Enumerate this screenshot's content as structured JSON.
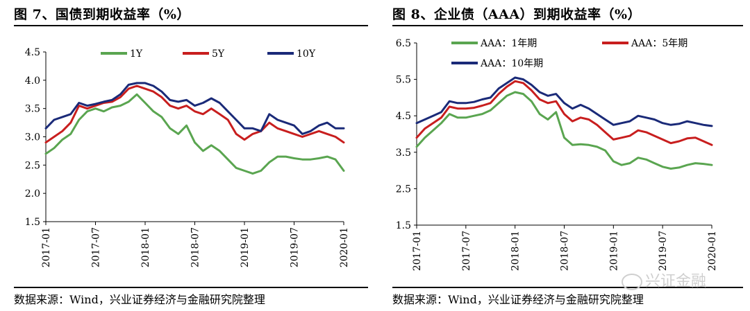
{
  "left": {
    "title": "图 7、国债到期收益率（%）",
    "source": "数据来源：Wind，兴业证券经济与金融研究院整理"
  },
  "right": {
    "title": "图 8、企业债（AAA）到期收益率（%）",
    "source": "数据来源：Wind，兴业证券经济与金融研究院整理"
  },
  "watermark": "兴证金融",
  "chart_data": [
    {
      "type": "line",
      "title": "图 7、国债到期收益率（%）",
      "x_ticks": [
        "2017-01",
        "2017-07",
        "2018-01",
        "2018-07",
        "2019-01",
        "2019-07",
        "2020-01"
      ],
      "y_ticks": [
        "1.5",
        "2.0",
        "2.5",
        "3.0",
        "3.5",
        "4.0",
        "4.5"
      ],
      "ylim": [
        1.5,
        4.5
      ],
      "xlim": [
        "2017-01",
        "2020-01"
      ],
      "legend_position": "top",
      "grid": false,
      "series": [
        {
          "name": "1Y",
          "color": "#5aa550",
          "points": [
            [
              "2017-01",
              2.7
            ],
            [
              "2017-02",
              2.8
            ],
            [
              "2017-03",
              2.95
            ],
            [
              "2017-04",
              3.05
            ],
            [
              "2017-05",
              3.3
            ],
            [
              "2017-06",
              3.45
            ],
            [
              "2017-07",
              3.5
            ],
            [
              "2017-08",
              3.45
            ],
            [
              "2017-09",
              3.52
            ],
            [
              "2017-10",
              3.55
            ],
            [
              "2017-11",
              3.62
            ],
            [
              "2017-12",
              3.75
            ],
            [
              "2018-01",
              3.6
            ],
            [
              "2018-02",
              3.45
            ],
            [
              "2018-03",
              3.35
            ],
            [
              "2018-04",
              3.15
            ],
            [
              "2018-05",
              3.05
            ],
            [
              "2018-06",
              3.2
            ],
            [
              "2018-07",
              2.9
            ],
            [
              "2018-08",
              2.75
            ],
            [
              "2018-09",
              2.85
            ],
            [
              "2018-10",
              2.75
            ],
            [
              "2018-11",
              2.6
            ],
            [
              "2018-12",
              2.45
            ],
            [
              "2019-01",
              2.4
            ],
            [
              "2019-02",
              2.35
            ],
            [
              "2019-03",
              2.4
            ],
            [
              "2019-04",
              2.55
            ],
            [
              "2019-05",
              2.65
            ],
            [
              "2019-06",
              2.65
            ],
            [
              "2019-07",
              2.62
            ],
            [
              "2019-08",
              2.6
            ],
            [
              "2019-09",
              2.6
            ],
            [
              "2019-10",
              2.62
            ],
            [
              "2019-11",
              2.65
            ],
            [
              "2019-12",
              2.6
            ],
            [
              "2020-01",
              2.4
            ]
          ]
        },
        {
          "name": "5Y",
          "color": "#c81e1e",
          "points": [
            [
              "2017-01",
              2.9
            ],
            [
              "2017-02",
              3.0
            ],
            [
              "2017-03",
              3.1
            ],
            [
              "2017-04",
              3.25
            ],
            [
              "2017-05",
              3.55
            ],
            [
              "2017-06",
              3.5
            ],
            [
              "2017-07",
              3.55
            ],
            [
              "2017-08",
              3.6
            ],
            [
              "2017-09",
              3.62
            ],
            [
              "2017-10",
              3.7
            ],
            [
              "2017-11",
              3.85
            ],
            [
              "2017-12",
              3.9
            ],
            [
              "2018-01",
              3.85
            ],
            [
              "2018-02",
              3.8
            ],
            [
              "2018-03",
              3.7
            ],
            [
              "2018-04",
              3.55
            ],
            [
              "2018-05",
              3.5
            ],
            [
              "2018-06",
              3.55
            ],
            [
              "2018-07",
              3.45
            ],
            [
              "2018-08",
              3.4
            ],
            [
              "2018-09",
              3.5
            ],
            [
              "2018-10",
              3.4
            ],
            [
              "2018-11",
              3.3
            ],
            [
              "2018-12",
              3.05
            ],
            [
              "2019-01",
              2.95
            ],
            [
              "2019-02",
              3.05
            ],
            [
              "2019-03",
              3.1
            ],
            [
              "2019-04",
              3.25
            ],
            [
              "2019-05",
              3.15
            ],
            [
              "2019-06",
              3.1
            ],
            [
              "2019-07",
              3.05
            ],
            [
              "2019-08",
              3.0
            ],
            [
              "2019-09",
              3.05
            ],
            [
              "2019-10",
              3.1
            ],
            [
              "2019-11",
              3.05
            ],
            [
              "2019-12",
              3.0
            ],
            [
              "2020-01",
              2.9
            ]
          ]
        },
        {
          "name": "10Y",
          "color": "#1a2a78",
          "points": [
            [
              "2017-01",
              3.15
            ],
            [
              "2017-02",
              3.3
            ],
            [
              "2017-03",
              3.35
            ],
            [
              "2017-04",
              3.4
            ],
            [
              "2017-05",
              3.6
            ],
            [
              "2017-06",
              3.55
            ],
            [
              "2017-07",
              3.58
            ],
            [
              "2017-08",
              3.62
            ],
            [
              "2017-09",
              3.65
            ],
            [
              "2017-10",
              3.75
            ],
            [
              "2017-11",
              3.92
            ],
            [
              "2017-12",
              3.95
            ],
            [
              "2018-01",
              3.95
            ],
            [
              "2018-02",
              3.9
            ],
            [
              "2018-03",
              3.8
            ],
            [
              "2018-04",
              3.65
            ],
            [
              "2018-05",
              3.62
            ],
            [
              "2018-06",
              3.65
            ],
            [
              "2018-07",
              3.55
            ],
            [
              "2018-08",
              3.6
            ],
            [
              "2018-09",
              3.68
            ],
            [
              "2018-10",
              3.6
            ],
            [
              "2018-11",
              3.45
            ],
            [
              "2018-12",
              3.3
            ],
            [
              "2019-01",
              3.15
            ],
            [
              "2019-02",
              3.15
            ],
            [
              "2019-03",
              3.1
            ],
            [
              "2019-04",
              3.4
            ],
            [
              "2019-05",
              3.3
            ],
            [
              "2019-06",
              3.25
            ],
            [
              "2019-07",
              3.2
            ],
            [
              "2019-08",
              3.05
            ],
            [
              "2019-09",
              3.1
            ],
            [
              "2019-10",
              3.2
            ],
            [
              "2019-11",
              3.25
            ],
            [
              "2019-12",
              3.15
            ],
            [
              "2020-01",
              3.15
            ]
          ]
        }
      ]
    },
    {
      "type": "line",
      "title": "图 8、企业债（AAA）到期收益率（%）",
      "x_ticks": [
        "2017-01",
        "2017-07",
        "2018-01",
        "2018-07",
        "2019-01",
        "2019-07",
        "2020-01"
      ],
      "y_ticks": [
        "1.5",
        "2.5",
        "3.5",
        "4.5",
        "5.5",
        "6.5"
      ],
      "ylim": [
        1.5,
        6.5
      ],
      "xlim": [
        "2017-01",
        "2020-01"
      ],
      "legend_position": "top",
      "grid": false,
      "series": [
        {
          "name": "AAA：1年期",
          "color": "#5aa550",
          "points": [
            [
              "2017-01",
              3.65
            ],
            [
              "2017-02",
              3.9
            ],
            [
              "2017-03",
              4.1
            ],
            [
              "2017-04",
              4.3
            ],
            [
              "2017-05",
              4.55
            ],
            [
              "2017-06",
              4.45
            ],
            [
              "2017-07",
              4.45
            ],
            [
              "2017-08",
              4.5
            ],
            [
              "2017-09",
              4.55
            ],
            [
              "2017-10",
              4.65
            ],
            [
              "2017-11",
              4.85
            ],
            [
              "2017-12",
              5.05
            ],
            [
              "2018-01",
              5.15
            ],
            [
              "2018-02",
              5.1
            ],
            [
              "2018-03",
              4.9
            ],
            [
              "2018-04",
              4.55
            ],
            [
              "2018-05",
              4.4
            ],
            [
              "2018-06",
              4.6
            ],
            [
              "2018-07",
              3.9
            ],
            [
              "2018-08",
              3.7
            ],
            [
              "2018-09",
              3.72
            ],
            [
              "2018-10",
              3.7
            ],
            [
              "2018-11",
              3.65
            ],
            [
              "2018-12",
              3.55
            ],
            [
              "2019-01",
              3.25
            ],
            [
              "2019-02",
              3.15
            ],
            [
              "2019-03",
              3.2
            ],
            [
              "2019-04",
              3.35
            ],
            [
              "2019-05",
              3.3
            ],
            [
              "2019-06",
              3.2
            ],
            [
              "2019-07",
              3.1
            ],
            [
              "2019-08",
              3.05
            ],
            [
              "2019-09",
              3.08
            ],
            [
              "2019-10",
              3.15
            ],
            [
              "2019-11",
              3.2
            ],
            [
              "2019-12",
              3.18
            ],
            [
              "2020-01",
              3.15
            ]
          ]
        },
        {
          "name": "AAA：5年期",
          "color": "#c81e1e",
          "points": [
            [
              "2017-01",
              3.9
            ],
            [
              "2017-02",
              4.15
            ],
            [
              "2017-03",
              4.3
            ],
            [
              "2017-04",
              4.45
            ],
            [
              "2017-05",
              4.75
            ],
            [
              "2017-06",
              4.7
            ],
            [
              "2017-07",
              4.7
            ],
            [
              "2017-08",
              4.72
            ],
            [
              "2017-09",
              4.78
            ],
            [
              "2017-10",
              4.85
            ],
            [
              "2017-11",
              5.1
            ],
            [
              "2017-12",
              5.3
            ],
            [
              "2018-01",
              5.45
            ],
            [
              "2018-02",
              5.4
            ],
            [
              "2018-03",
              5.2
            ],
            [
              "2018-04",
              4.95
            ],
            [
              "2018-05",
              4.85
            ],
            [
              "2018-06",
              4.9
            ],
            [
              "2018-07",
              4.55
            ],
            [
              "2018-08",
              4.35
            ],
            [
              "2018-09",
              4.45
            ],
            [
              "2018-10",
              4.4
            ],
            [
              "2018-11",
              4.25
            ],
            [
              "2018-12",
              4.05
            ],
            [
              "2019-01",
              3.85
            ],
            [
              "2019-02",
              3.9
            ],
            [
              "2019-03",
              3.95
            ],
            [
              "2019-04",
              4.1
            ],
            [
              "2019-05",
              4.05
            ],
            [
              "2019-06",
              3.95
            ],
            [
              "2019-07",
              3.85
            ],
            [
              "2019-08",
              3.75
            ],
            [
              "2019-09",
              3.8
            ],
            [
              "2019-10",
              3.88
            ],
            [
              "2019-11",
              3.9
            ],
            [
              "2019-12",
              3.8
            ],
            [
              "2020-01",
              3.7
            ]
          ]
        },
        {
          "name": "AAA：10年期",
          "color": "#1a2a78",
          "points": [
            [
              "2017-01",
              4.3
            ],
            [
              "2017-02",
              4.4
            ],
            [
              "2017-03",
              4.5
            ],
            [
              "2017-04",
              4.6
            ],
            [
              "2017-05",
              4.9
            ],
            [
              "2017-06",
              4.85
            ],
            [
              "2017-07",
              4.85
            ],
            [
              "2017-08",
              4.88
            ],
            [
              "2017-09",
              4.95
            ],
            [
              "2017-10",
              5.0
            ],
            [
              "2017-11",
              5.25
            ],
            [
              "2017-12",
              5.4
            ],
            [
              "2018-01",
              5.55
            ],
            [
              "2018-02",
              5.5
            ],
            [
              "2018-03",
              5.35
            ],
            [
              "2018-04",
              5.15
            ],
            [
              "2018-05",
              5.05
            ],
            [
              "2018-06",
              5.1
            ],
            [
              "2018-07",
              4.85
            ],
            [
              "2018-08",
              4.7
            ],
            [
              "2018-09",
              4.8
            ],
            [
              "2018-10",
              4.7
            ],
            [
              "2018-11",
              4.55
            ],
            [
              "2018-12",
              4.4
            ],
            [
              "2019-01",
              4.25
            ],
            [
              "2019-02",
              4.3
            ],
            [
              "2019-03",
              4.35
            ],
            [
              "2019-04",
              4.5
            ],
            [
              "2019-05",
              4.45
            ],
            [
              "2019-06",
              4.4
            ],
            [
              "2019-07",
              4.3
            ],
            [
              "2019-08",
              4.25
            ],
            [
              "2019-09",
              4.28
            ],
            [
              "2019-10",
              4.35
            ],
            [
              "2019-11",
              4.3
            ],
            [
              "2019-12",
              4.25
            ],
            [
              "2020-01",
              4.22
            ]
          ]
        }
      ]
    }
  ]
}
